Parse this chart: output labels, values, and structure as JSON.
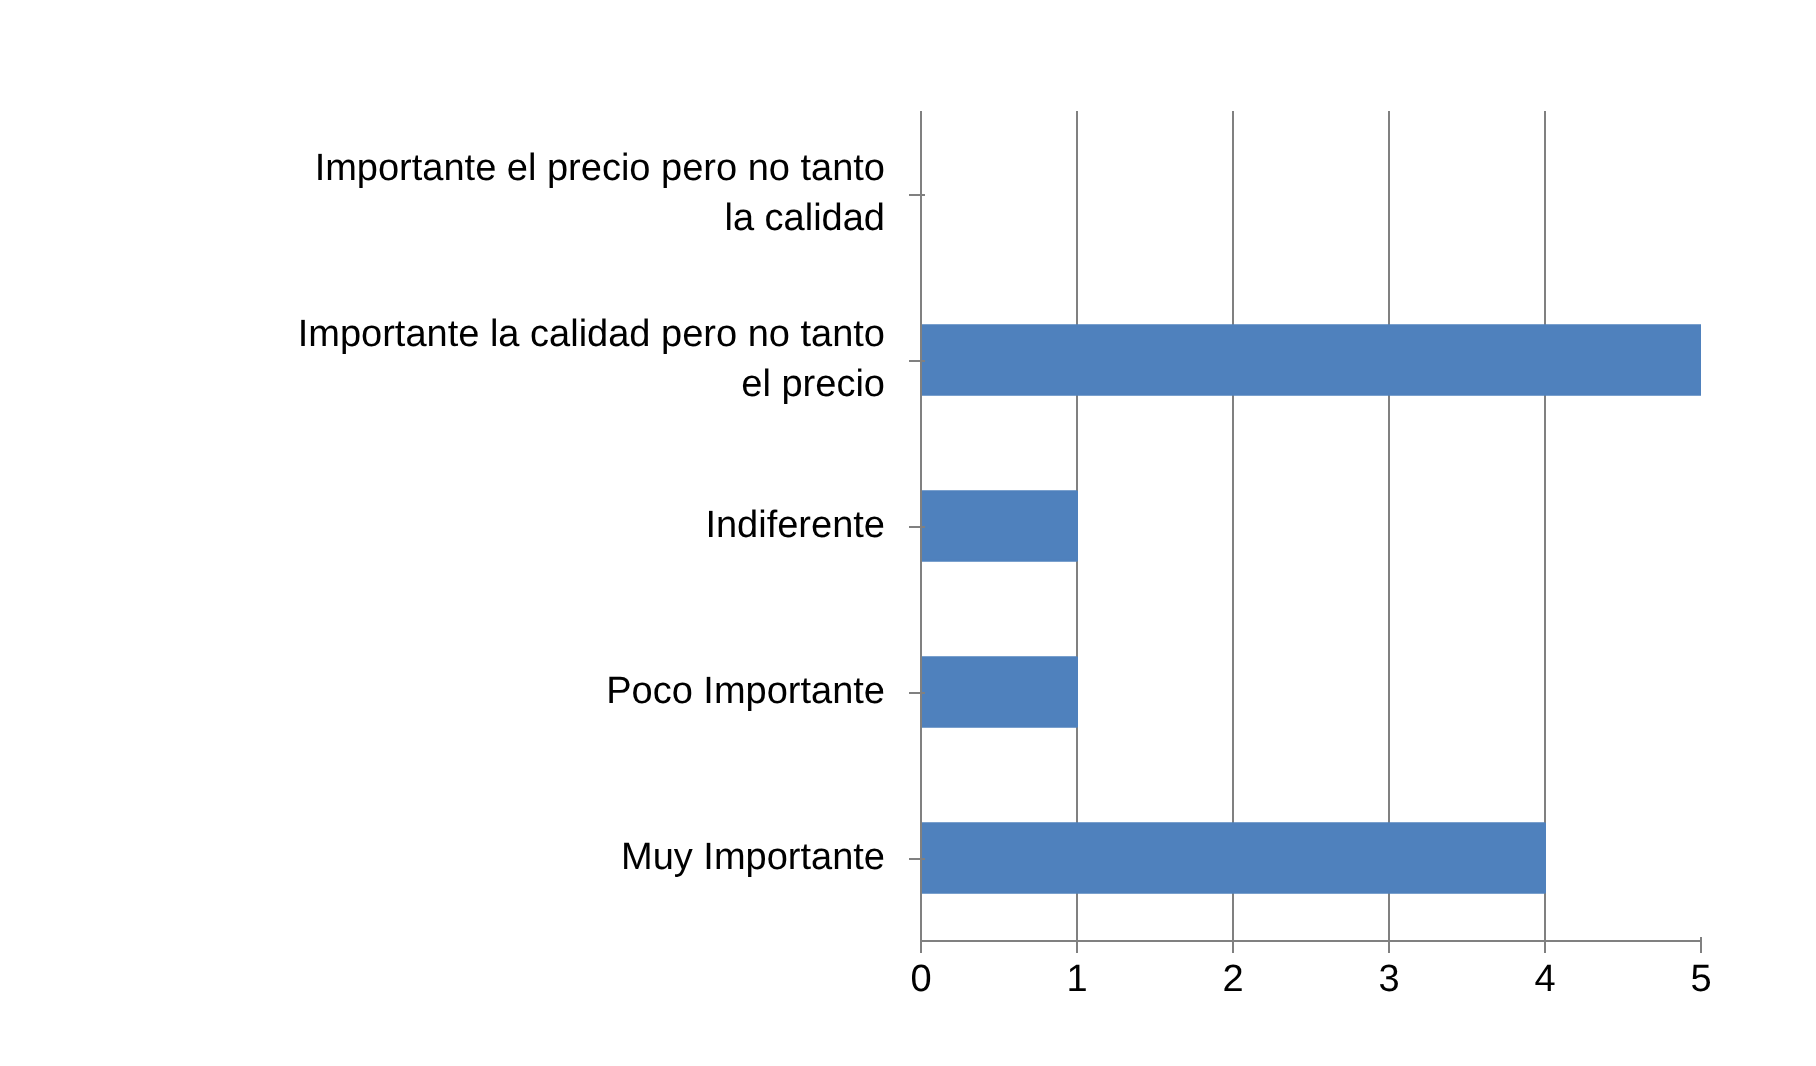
{
  "chart_data": {
    "type": "bar",
    "orientation": "horizontal",
    "categories": [
      "Importante el precio pero no tanto la calidad",
      "Importante la calidad pero no tanto el precio",
      "Indiferente",
      "Poco Importante",
      "Muy Importante"
    ],
    "values": [
      0,
      5,
      1,
      1,
      4
    ],
    "color": "#4f81bd",
    "xlim": [
      0,
      5
    ],
    "xticks": [
      0,
      1,
      2,
      3,
      4,
      5
    ],
    "grid": "x"
  }
}
